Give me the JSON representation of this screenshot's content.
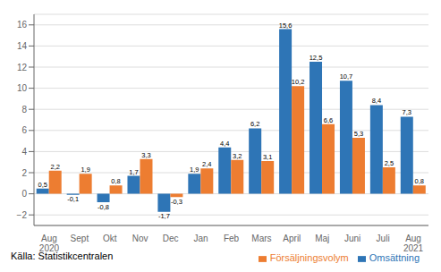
{
  "chart_data": {
    "type": "bar",
    "categories": [
      "Aug\n2020",
      "Sept",
      "Okt",
      "Nov",
      "Dec",
      "Jan",
      "Feb",
      "Mars",
      "April",
      "Maj",
      "Juni",
      "Juli",
      "Aug\n2021"
    ],
    "series": [
      {
        "name": "Omsättning",
        "color": "#2e75b6",
        "values": [
          0.5,
          -0.1,
          -0.8,
          1.7,
          -1.7,
          1.9,
          4.4,
          6.2,
          15.6,
          12.5,
          10.7,
          8.4,
          7.3
        ],
        "value_labels": [
          "0,5",
          "-0,1",
          "-0,8",
          "1,7",
          "-1,7",
          "1,9",
          "4,4",
          "6,2",
          "15,6",
          "12,5",
          "10,7",
          "8,4",
          "7,3"
        ]
      },
      {
        "name": "Försäljningsvolym",
        "color": "#ed7d31",
        "values": [
          2.2,
          1.9,
          0.8,
          3.3,
          -0.3,
          2.4,
          3.2,
          3.1,
          10.2,
          6.6,
          5.3,
          2.5,
          0.8
        ],
        "value_labels": [
          "2,2",
          "1,9",
          "0,8",
          "3,3",
          "-0,3",
          "2,4",
          "3,2",
          "3,1",
          "10,2",
          "6,6",
          "5,3",
          "2,5",
          "0,8"
        ]
      }
    ],
    "ylim": [
      -3,
      17
    ],
    "yticks": [
      {
        "value": -2,
        "label": "−2"
      },
      0,
      2,
      4,
      6,
      8,
      10,
      12,
      14,
      16
    ],
    "grid": true,
    "legend": "lower right",
    "data_labels": true,
    "source": "Källa: Statistikcentralen"
  }
}
